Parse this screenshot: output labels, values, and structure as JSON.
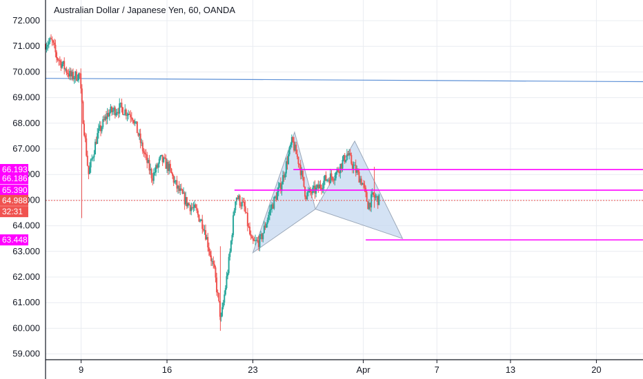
{
  "header": {
    "title": "Australian Dollar / Japanese Yen, 60, OANDA"
  },
  "price_tags": [
    {
      "label": "66.193",
      "value": 66.193,
      "color": "#ff00ff"
    },
    {
      "label": "66.186",
      "value": 65.84,
      "color": "#ff00ff"
    },
    {
      "label": "65.390",
      "value": 65.39,
      "color": "#ff00ff"
    },
    {
      "label": "64.988",
      "value": 64.988,
      "color": "#f05350"
    },
    {
      "label": "32:31",
      "value": 64.55,
      "color": "#f05350"
    },
    {
      "label": "63.448",
      "value": 63.448,
      "color": "#ff00ff"
    }
  ],
  "colors": {
    "up": "#26a69a",
    "down": "#ef5350",
    "magenta": "#ff00ff",
    "trendline": "#5b8fd6",
    "pattern_fill": "#c5d8f0",
    "pattern_stroke": "#9aa7b8",
    "grid": "#e9ecf1",
    "axis": "#131722"
  },
  "chart_data": {
    "type": "candlestick",
    "title": "Australian Dollar / Japanese Yen, 60, OANDA",
    "y_ticks": [
      "72.000",
      "71.000",
      "70.000",
      "69.000",
      "68.000",
      "67.000",
      "66.000",
      "65.000",
      "64.000",
      "63.000",
      "62.000",
      "61.000",
      "60.000",
      "59.000"
    ],
    "ylim": [
      58.7,
      72.2
    ],
    "x_ticks": [
      {
        "label": "9",
        "day": 9
      },
      {
        "label": "16",
        "day": 16
      },
      {
        "label": "23",
        "day": 23
      },
      {
        "label": "Apr",
        "day": 32
      },
      {
        "label": "7",
        "day": 38
      },
      {
        "label": "13",
        "day": 44
      },
      {
        "label": "20",
        "day": 51
      }
    ],
    "xlim": [
      6.1,
      54.8
    ],
    "price_path": [
      [
        6.1,
        71.1
      ],
      [
        6.6,
        71.2
      ],
      [
        7.0,
        70.6
      ],
      [
        7.6,
        70.2
      ],
      [
        8.2,
        69.8
      ],
      [
        8.9,
        69.9
      ],
      [
        9.0,
        69.0
      ],
      [
        9.6,
        66.0
      ],
      [
        10.3,
        67.5
      ],
      [
        11.2,
        68.4
      ],
      [
        12.2,
        68.6
      ],
      [
        13.2,
        68.3
      ],
      [
        14.0,
        67.0
      ],
      [
        14.8,
        65.9
      ],
      [
        15.5,
        66.6
      ],
      [
        16.1,
        66.3
      ],
      [
        16.8,
        65.5
      ],
      [
        17.6,
        64.9
      ],
      [
        18.3,
        64.6
      ],
      [
        19.0,
        64.0
      ],
      [
        19.9,
        62.1
      ],
      [
        20.4,
        60.3
      ],
      [
        21.1,
        62.8
      ],
      [
        21.6,
        65.2
      ],
      [
        22.3,
        64.7
      ],
      [
        22.9,
        63.3
      ],
      [
        23.6,
        63.4
      ],
      [
        24.4,
        64.6
      ],
      [
        25.3,
        65.6
      ],
      [
        26.2,
        67.3
      ],
      [
        26.8,
        66.4
      ],
      [
        27.3,
        65.2
      ],
      [
        28.2,
        65.4
      ],
      [
        28.9,
        65.8
      ],
      [
        29.7,
        66.0
      ],
      [
        30.7,
        66.8
      ],
      [
        31.2,
        66.3
      ],
      [
        31.9,
        65.7
      ],
      [
        32.4,
        64.8
      ],
      [
        32.8,
        65.15
      ],
      [
        33.3,
        64.99
      ]
    ],
    "horizontal_levels": [
      {
        "label": "66.193",
        "value": 66.193,
        "from_day": 26.3,
        "color": "#ff00ff"
      },
      {
        "label": "65.390",
        "value": 65.39,
        "from_day": 21.5,
        "color": "#ff00ff"
      },
      {
        "label": "63.448",
        "value": 63.448,
        "from_day": 32.2,
        "color": "#ff00ff"
      },
      {
        "label": "64.988",
        "value": 64.988,
        "from_day": 6.1,
        "color": "#f05350",
        "style": "dotted"
      }
    ],
    "trendline": {
      "from": [
        6.1,
        69.75
      ],
      "to": [
        54.8,
        69.62
      ]
    },
    "harmonic_pattern": {
      "points": [
        [
          23.0,
          62.95
        ],
        [
          26.4,
          67.65
        ],
        [
          28.1,
          64.65
        ],
        [
          31.3,
          67.3
        ],
        [
          35.2,
          63.5
        ]
      ]
    },
    "grid": true,
    "legend": "none"
  }
}
